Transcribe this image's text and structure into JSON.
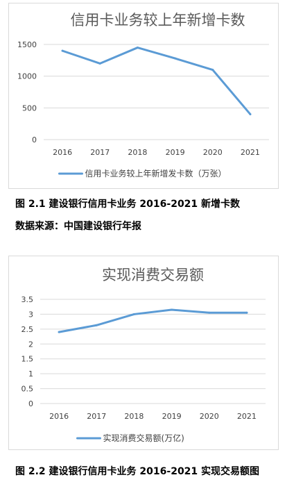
{
  "chart_data": [
    {
      "type": "line",
      "title": "信用卡业务较上年新增卡数",
      "categories": [
        "2016",
        "2017",
        "2018",
        "2019",
        "2020",
        "2021"
      ],
      "series": [
        {
          "name": "信用卡业务较上年新增发卡数（万张）",
          "values": [
            1400,
            1200,
            1450,
            1280,
            1100,
            400
          ]
        }
      ],
      "ylim": [
        0,
        1500
      ],
      "yticks": [
        "0",
        "500",
        "1000",
        "1500"
      ],
      "grid": true,
      "legend": "bottom",
      "color": "#5b9bd5"
    },
    {
      "type": "line",
      "title": "实现消费交易额",
      "categories": [
        "2016",
        "2017",
        "2018",
        "2019",
        "2020",
        "2021"
      ],
      "series": [
        {
          "name": "实现消费交易额(万亿)",
          "values": [
            2.4,
            2.63,
            3.0,
            3.15,
            3.05,
            3.05
          ]
        }
      ],
      "ylim": [
        0,
        3.5
      ],
      "yticks": [
        "0",
        "0.5",
        "1",
        "1.5",
        "2",
        "2.5",
        "3",
        "3.5"
      ],
      "grid": true,
      "legend": "bottom",
      "color": "#5b9bd5"
    }
  ],
  "captions": {
    "fig1": "图 2.1  建设银行信用卡业务 2016-2021 新增卡数",
    "source1": "数据来源：中国建设银行年报",
    "fig2": "图 2.2  建设银行信用卡业务 2016-2021 实现交易额图"
  }
}
